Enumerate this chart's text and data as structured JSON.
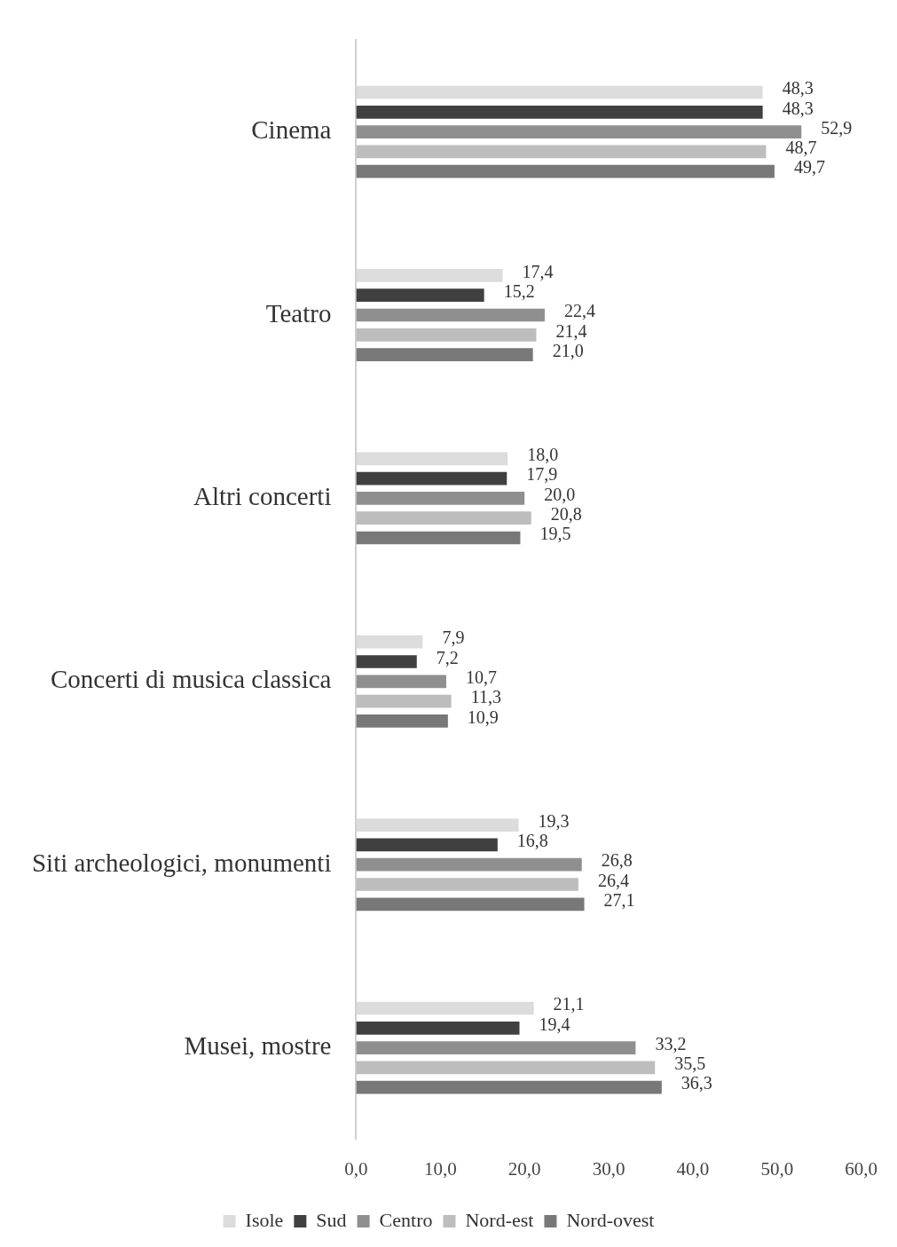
{
  "chart_data": {
    "type": "bar",
    "orientation": "horizontal",
    "categories": [
      "Cinema",
      "Teatro",
      "Altri concerti",
      "Concerti di musica classica",
      "Siti archeologici, monumenti",
      "Musei, mostre"
    ],
    "series": [
      {
        "name": "Isole",
        "color": "#dcdcdc",
        "values": [
          48.3,
          17.4,
          18.0,
          7.9,
          19.3,
          21.1
        ],
        "value_labels": [
          "48,3",
          "17,4",
          "18,0",
          "7,9",
          "19,3",
          "21,1"
        ]
      },
      {
        "name": "Sud",
        "color": "#404040",
        "values": [
          48.3,
          15.2,
          17.9,
          7.2,
          16.8,
          19.4
        ],
        "value_labels": [
          "48,3",
          "15,2",
          "17,9",
          "7,2",
          "16,8",
          "19,4"
        ]
      },
      {
        "name": "Centro",
        "color": "#8f8f8f",
        "values": [
          52.9,
          22.4,
          20.0,
          10.7,
          26.8,
          33.2
        ],
        "value_labels": [
          "52,9",
          "22,4",
          "20,0",
          "10,7",
          "26,8",
          "33,2"
        ]
      },
      {
        "name": "Nord-est",
        "color": "#bdbdbd",
        "values": [
          48.7,
          21.4,
          20.8,
          11.3,
          26.4,
          35.5
        ],
        "value_labels": [
          "48,7",
          "21,4",
          "20,8",
          "11,3",
          "26,4",
          "35,5"
        ]
      },
      {
        "name": "Nord-ovest",
        "color": "#787878",
        "values": [
          49.7,
          21.0,
          19.5,
          10.9,
          27.1,
          36.3
        ],
        "value_labels": [
          "49,7",
          "21,0",
          "19,5",
          "10,9",
          "27,1",
          "36,3"
        ]
      }
    ],
    "xlim": [
      0,
      60
    ],
    "xticks": [
      {
        "value": 0,
        "label": "0,0"
      },
      {
        "value": 10,
        "label": "10,0"
      },
      {
        "value": 20,
        "label": "20,0"
      },
      {
        "value": 30,
        "label": "30,0"
      },
      {
        "value": 40,
        "label": "40,0"
      },
      {
        "value": 50,
        "label": "50,0"
      },
      {
        "value": 60,
        "label": "60,0"
      }
    ],
    "grid": false,
    "legend": "bottom"
  }
}
